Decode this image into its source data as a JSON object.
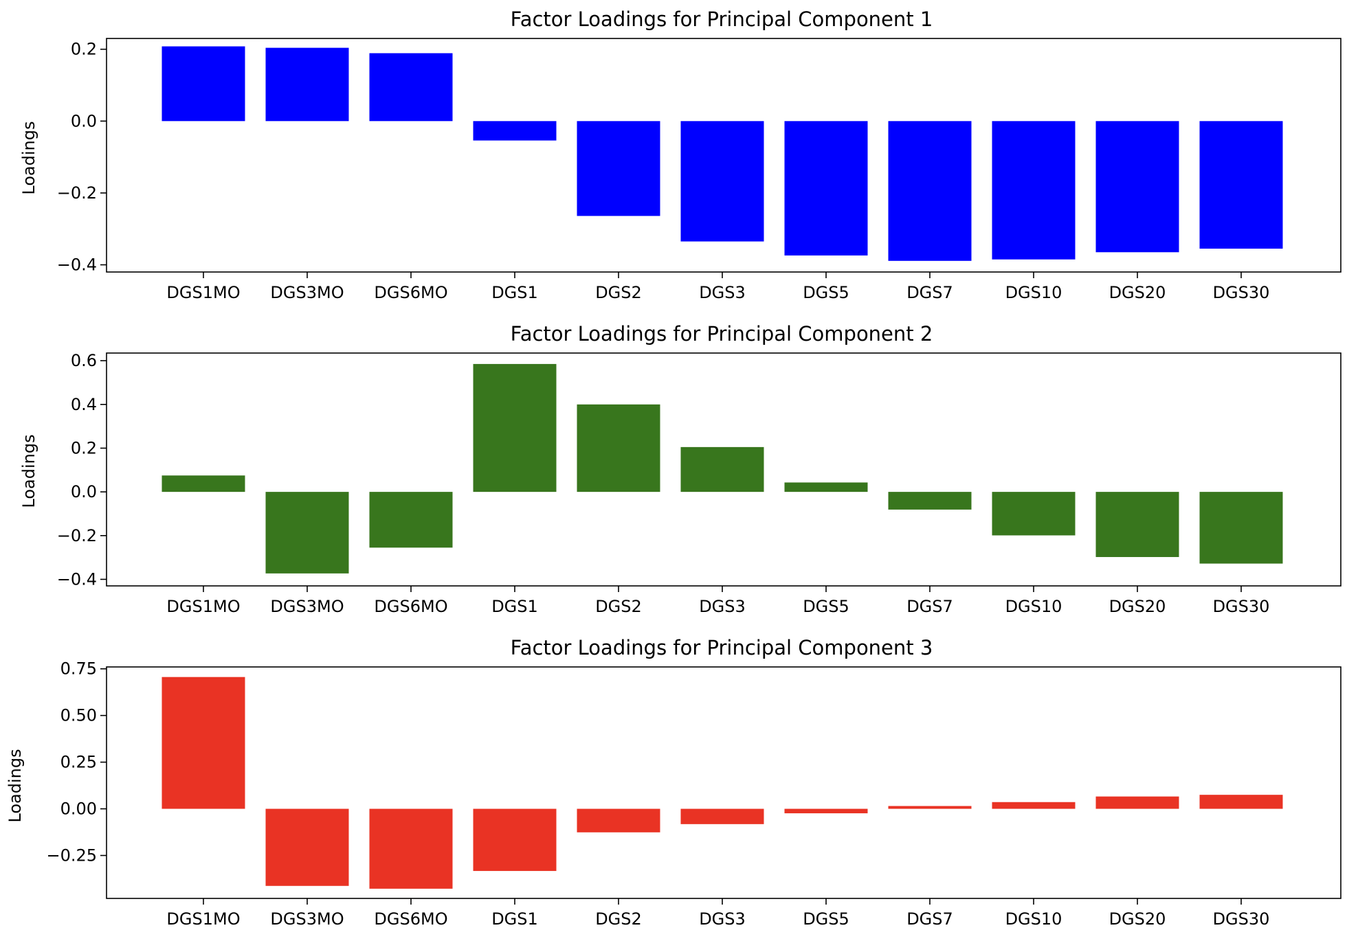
{
  "chart_data": [
    {
      "type": "bar",
      "title": "Factor Loadings for Principal Component 1",
      "xlabel": "",
      "ylabel": "Loadings",
      "categories": [
        "DGS1MO",
        "DGS3MO",
        "DGS6MO",
        "DGS1",
        "DGS2",
        "DGS3",
        "DGS5",
        "DGS7",
        "DGS10",
        "DGS20",
        "DGS30"
      ],
      "values": [
        0.208,
        0.204,
        0.189,
        -0.054,
        -0.264,
        -0.335,
        -0.374,
        -0.389,
        -0.385,
        -0.365,
        -0.355
      ],
      "ylim": [
        -0.42,
        0.23
      ],
      "yticks": [
        0.2,
        0.0,
        -0.2,
        -0.4
      ],
      "ytick_labels": [
        "0.2",
        "0.0",
        "−0.2",
        "−0.4"
      ],
      "color": "#0000ff",
      "grid": false
    },
    {
      "type": "bar",
      "title": "Factor Loadings for Principal Component 2",
      "xlabel": "",
      "ylabel": "Loadings",
      "categories": [
        "DGS1MO",
        "DGS3MO",
        "DGS6MO",
        "DGS1",
        "DGS2",
        "DGS3",
        "DGS5",
        "DGS7",
        "DGS10",
        "DGS20",
        "DGS30"
      ],
      "values": [
        0.075,
        -0.373,
        -0.255,
        0.585,
        0.4,
        0.205,
        0.043,
        -0.081,
        -0.199,
        -0.298,
        -0.328
      ],
      "ylim": [
        -0.43,
        0.635
      ],
      "yticks": [
        0.6,
        0.4,
        0.2,
        0.0,
        -0.2,
        -0.4
      ],
      "ytick_labels": [
        "0.6",
        "0.4",
        "0.2",
        "0.0",
        "−0.2",
        "−0.4"
      ],
      "color": "#38761d",
      "grid": false
    },
    {
      "type": "bar",
      "title": "Factor Loadings for Principal Component 3",
      "xlabel": "",
      "ylabel": "Loadings",
      "categories": [
        "DGS1MO",
        "DGS3MO",
        "DGS6MO",
        "DGS1",
        "DGS2",
        "DGS3",
        "DGS5",
        "DGS7",
        "DGS10",
        "DGS20",
        "DGS30"
      ],
      "values": [
        0.706,
        -0.413,
        -0.428,
        -0.333,
        -0.126,
        -0.082,
        -0.024,
        0.015,
        0.036,
        0.066,
        0.075
      ],
      "ylim": [
        -0.48,
        0.76
      ],
      "yticks": [
        0.75,
        0.5,
        0.25,
        0.0,
        -0.25
      ],
      "ytick_labels": [
        "0.75",
        "0.50",
        "0.25",
        "0.00",
        "−0.25"
      ],
      "color": "#e93324",
      "grid": false
    }
  ]
}
